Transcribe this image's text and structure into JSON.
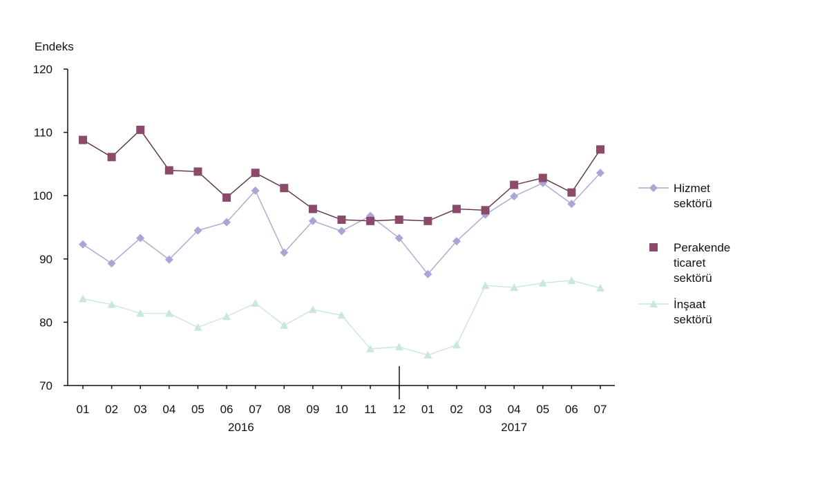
{
  "chart_data": {
    "type": "line",
    "ylabel": "Endeks",
    "ylim": [
      70,
      120
    ],
    "yticks": [
      70,
      80,
      90,
      100,
      110,
      120
    ],
    "categories": [
      "01",
      "02",
      "03",
      "04",
      "05",
      "06",
      "07",
      "08",
      "09",
      "10",
      "11",
      "12",
      "01",
      "02",
      "03",
      "04",
      "05",
      "06",
      "07"
    ],
    "year_labels": [
      {
        "label": "2016",
        "start": 0,
        "end": 11
      },
      {
        "label": "2017",
        "start": 12,
        "end": 18
      }
    ],
    "grid": false,
    "legend": "right",
    "series": [
      {
        "name": "Hizmet sektörü",
        "legend_lines": [
          "Hizmet",
          "sektörü"
        ],
        "color": "#a9a6d6",
        "marker": "diamond",
        "values": [
          92.3,
          89.3,
          93.3,
          89.9,
          94.5,
          95.8,
          100.8,
          91.0,
          96.0,
          94.4,
          96.8,
          93.3,
          87.6,
          92.8,
          97.0,
          99.9,
          102.0,
          98.7,
          103.6
        ]
      },
      {
        "name": "Perakende ticaret sektörü",
        "legend_lines": [
          "Perakende",
          "ticaret",
          "sektörü"
        ],
        "color": "#8b4a6a",
        "marker": "square",
        "values": [
          108.8,
          106.1,
          110.4,
          104.0,
          103.8,
          99.7,
          103.6,
          101.2,
          97.9,
          96.2,
          96.0,
          96.2,
          96.0,
          97.9,
          97.7,
          101.7,
          102.8,
          100.5,
          107.3
        ]
      },
      {
        "name": "İnşaat sektörü",
        "legend_lines": [
          "İnşaat",
          "sektörü"
        ],
        "color": "#c9e6e3",
        "marker": "triangle",
        "values": [
          83.7,
          82.8,
          81.4,
          81.4,
          79.2,
          80.9,
          83.0,
          79.5,
          82.0,
          81.1,
          75.8,
          76.1,
          74.8,
          76.4,
          85.8,
          85.5,
          86.2,
          86.6,
          85.4
        ]
      }
    ]
  }
}
